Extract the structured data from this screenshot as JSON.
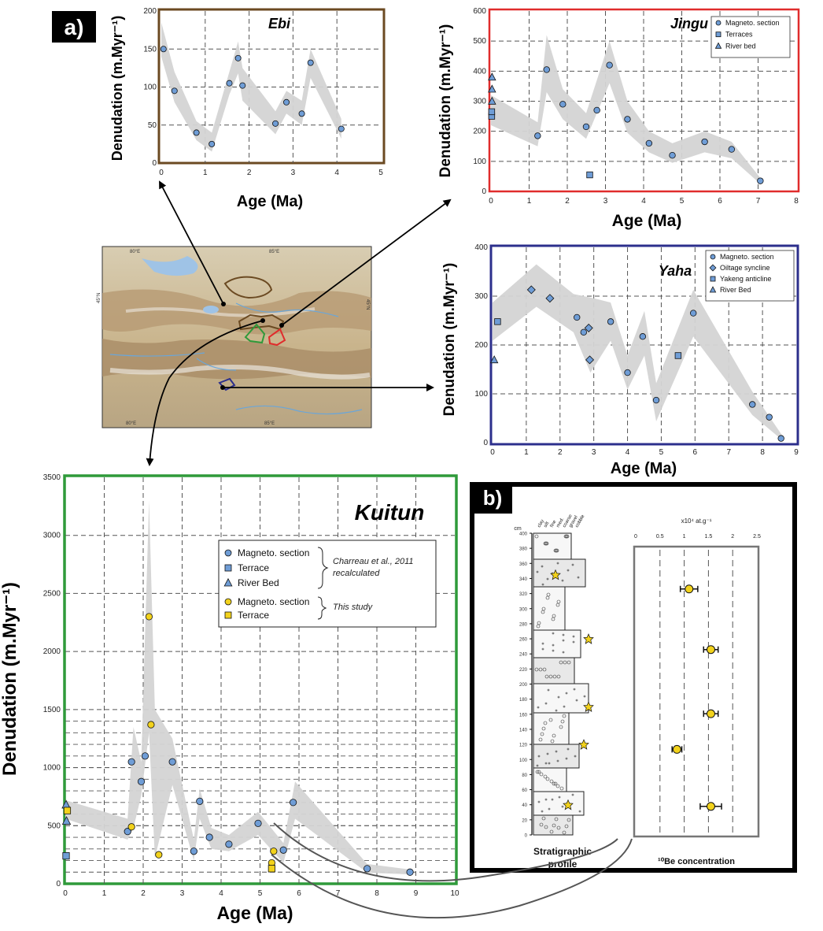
{
  "panel_labels": {
    "a": "a)",
    "b": "b)"
  },
  "colors": {
    "ebi": "#6b4a22",
    "jingu": "#e02c2c",
    "yaha": "#2c2f8c",
    "kuitun": "#2f9a3a",
    "band": "#d4d4d4",
    "blue_point": "#6f9dd6",
    "yellow_point": "#f2d21c"
  },
  "chart_data": [
    {
      "id": "ebi",
      "type": "scatter",
      "title": "Ebi",
      "xlabel": "Age (Ma)",
      "ylabel": "Denudation (m.Myr⁻¹)",
      "xlim": [
        0,
        5
      ],
      "ylim": [
        0,
        200
      ],
      "xticks": [
        "0",
        "1",
        "2",
        "3",
        "4",
        "5"
      ],
      "yticks": [
        "0",
        "50",
        "100",
        "150",
        "200"
      ],
      "grid": true,
      "series": [
        {
          "marker": "circle",
          "color": "#6f9dd6",
          "x": [
            0.05,
            0.3,
            0.8,
            1.15,
            1.55,
            1.75,
            1.85,
            2.6,
            2.85,
            3.2,
            3.4,
            4.1
          ],
          "y": [
            150,
            95,
            40,
            25,
            105,
            138,
            102,
            52,
            80,
            65,
            132,
            45
          ]
        }
      ],
      "band_upper": [
        [
          0,
          185
        ],
        [
          0.3,
          120
        ],
        [
          0.8,
          55
        ],
        [
          1.15,
          40
        ],
        [
          1.55,
          120
        ],
        [
          1.75,
          160
        ],
        [
          1.85,
          125
        ],
        [
          2.6,
          68
        ],
        [
          2.85,
          95
        ],
        [
          3.2,
          82
        ],
        [
          3.4,
          150
        ],
        [
          4.1,
          58
        ]
      ],
      "band_lower": [
        [
          0,
          140
        ],
        [
          0.3,
          80
        ],
        [
          0.8,
          30
        ],
        [
          1.15,
          15
        ],
        [
          1.55,
          90
        ],
        [
          1.75,
          118
        ],
        [
          1.85,
          82
        ],
        [
          2.6,
          38
        ],
        [
          2.85,
          65
        ],
        [
          3.2,
          50
        ],
        [
          3.4,
          112
        ],
        [
          4.1,
          32
        ]
      ]
    },
    {
      "id": "jingu",
      "type": "scatter",
      "title": "Jingu",
      "xlabel": "Age (Ma)",
      "ylabel": "Denudation (m.Myr⁻¹)",
      "xlim": [
        0,
        8.5
      ],
      "ylim": [
        0,
        600
      ],
      "xticks": [
        "0",
        "1",
        "2",
        "3",
        "4",
        "5",
        "6",
        "7",
        "8"
      ],
      "yticks": [
        "0",
        "100",
        "200",
        "300",
        "400",
        "500",
        "600"
      ],
      "grid": true,
      "legend": {
        "position": "top-right",
        "entries": [
          {
            "label": "Magneto. section",
            "marker": "circle"
          },
          {
            "label": "Terraces",
            "marker": "square"
          },
          {
            "label": "River bed",
            "marker": "triangle"
          }
        ]
      },
      "series": [
        {
          "name": "Magneto. section",
          "marker": "circle",
          "color": "#6f9dd6",
          "x": [
            1.3,
            1.55,
            2.0,
            2.65,
            2.95,
            3.3,
            3.8,
            4.4,
            5.05,
            5.95,
            6.7,
            7.5
          ],
          "y": [
            185,
            405,
            290,
            215,
            270,
            420,
            240,
            160,
            120,
            165,
            140,
            35
          ]
        },
        {
          "name": "Terraces",
          "marker": "square",
          "color": "#6f9dd6",
          "x": [
            0.02,
            0.02,
            2.75
          ],
          "y": [
            250,
            265,
            55
          ]
        },
        {
          "name": "River bed",
          "marker": "triangle",
          "color": "#6f9dd6",
          "x": [
            0.03,
            0.03,
            0.03
          ],
          "y": [
            380,
            340,
            300
          ]
        }
      ],
      "band_upper": [
        [
          0,
          320
        ],
        [
          1.3,
          230
        ],
        [
          1.55,
          520
        ],
        [
          2.0,
          340
        ],
        [
          2.65,
          260
        ],
        [
          3.3,
          500
        ],
        [
          3.8,
          300
        ],
        [
          4.4,
          200
        ],
        [
          5.05,
          160
        ],
        [
          5.95,
          200
        ],
        [
          6.7,
          165
        ],
        [
          7.5,
          45
        ]
      ],
      "band_lower": [
        [
          0,
          220
        ],
        [
          1.3,
          150
        ],
        [
          1.55,
          330
        ],
        [
          2.0,
          240
        ],
        [
          2.65,
          175
        ],
        [
          3.3,
          360
        ],
        [
          3.8,
          195
        ],
        [
          4.4,
          130
        ],
        [
          5.05,
          95
        ],
        [
          5.95,
          130
        ],
        [
          6.7,
          110
        ],
        [
          7.5,
          25
        ]
      ]
    },
    {
      "id": "yaha",
      "type": "scatter",
      "title": "Yaha",
      "xlabel": "Age (Ma)",
      "ylabel": "Denudation (m.Myr⁻¹)",
      "xlim": [
        0,
        9
      ],
      "ylim": [
        0,
        460
      ],
      "xticks": [
        "0",
        "1",
        "2",
        "3",
        "4",
        "5",
        "6",
        "7",
        "8",
        "9"
      ],
      "yticks": [
        "0",
        "100",
        "200",
        "300",
        "400"
      ],
      "grid": true,
      "legend": {
        "position": "top-right",
        "entries": [
          {
            "label": "Magneto. section",
            "marker": "circle"
          },
          {
            "label": "Oiltage syncline",
            "marker": "diamond"
          },
          {
            "label": "Yakeng anticline",
            "marker": "square"
          },
          {
            "label": "River Bed",
            "marker": "triangle"
          }
        ]
      },
      "series": [
        {
          "name": "Magneto. section",
          "marker": "circle",
          "color": "#6f9dd6",
          "x": [
            2.5,
            2.7,
            3.5,
            4.0,
            4.45,
            4.85,
            5.95,
            7.7,
            8.2,
            8.55
          ],
          "y": [
            295,
            260,
            285,
            165,
            250,
            100,
            305,
            90,
            60,
            10
          ]
        },
        {
          "name": "Oiltage syncline",
          "marker": "diamond",
          "color": "#6f9dd6",
          "x": [
            1.15,
            1.7,
            2.85,
            2.88
          ],
          "y": [
            360,
            340,
            270,
            195
          ]
        },
        {
          "name": "Yakeng anticline",
          "marker": "square",
          "color": "#6f9dd6",
          "x": [
            0.15,
            5.5
          ],
          "y": [
            285,
            205
          ]
        },
        {
          "name": "River Bed",
          "marker": "triangle",
          "color": "#6f9dd6",
          "x": [
            0.05
          ],
          "y": [
            195
          ]
        }
      ],
      "band_upper": [
        [
          0,
          330
        ],
        [
          1.3,
          420
        ],
        [
          2.4,
          350
        ],
        [
          3.0,
          340
        ],
        [
          3.5,
          330
        ],
        [
          4.0,
          205
        ],
        [
          4.5,
          310
        ],
        [
          4.85,
          140
        ],
        [
          5.95,
          360
        ],
        [
          7.7,
          120
        ],
        [
          8.6,
          15
        ]
      ],
      "band_lower": [
        [
          0,
          240
        ],
        [
          1.3,
          320
        ],
        [
          2.4,
          260
        ],
        [
          2.9,
          165
        ],
        [
          3.5,
          240
        ],
        [
          4.0,
          125
        ],
        [
          4.5,
          205
        ],
        [
          4.85,
          50
        ],
        [
          5.95,
          250
        ],
        [
          7.7,
          65
        ],
        [
          8.6,
          5
        ]
      ]
    },
    {
      "id": "kuitun",
      "type": "scatter",
      "title": "Kuitun",
      "xlabel": "Age (Ma)",
      "ylabel": "Denudation (m.Myr⁻¹)",
      "xlim": [
        0,
        10
      ],
      "ylim": [
        0,
        3500
      ],
      "xticks": [
        "0",
        "1",
        "2",
        "3",
        "4",
        "5",
        "6",
        "7",
        "8",
        "9",
        "10"
      ],
      "yticks": [
        "0",
        "500",
        "1000",
        "1500",
        "2000",
        "2500",
        "3000",
        "3500"
      ],
      "grid": true,
      "legend": {
        "position": "top-right",
        "entries": [
          {
            "label": "Magneto. section",
            "marker": "circle",
            "color": "#6f9dd6"
          },
          {
            "label": "Terrace",
            "marker": "square",
            "color": "#6f9dd6"
          },
          {
            "label": "River Bed",
            "marker": "triangle",
            "color": "#6f9dd6"
          },
          {
            "label": "Magneto. section",
            "marker": "circle",
            "color": "#f2d21c"
          },
          {
            "label": "Terrace",
            "marker": "square",
            "color": "#f2d21c"
          }
        ],
        "notes": [
          "Charreau et al., 2011 recalculated",
          "This study"
        ]
      },
      "series": [
        {
          "name": "Magneto. section",
          "marker": "circle",
          "color": "#6f9dd6",
          "x": [
            1.6,
            1.7,
            1.95,
            2.05,
            2.75,
            3.3,
            3.45,
            3.7,
            4.2,
            4.95,
            5.6,
            5.85,
            7.75,
            8.85
          ],
          "y": [
            450,
            1050,
            880,
            1100,
            1050,
            280,
            710,
            400,
            340,
            520,
            290,
            700,
            130,
            100
          ]
        },
        {
          "name": "Terrace",
          "marker": "square",
          "color": "#6f9dd6",
          "x": [
            0.02
          ],
          "y": [
            240
          ]
        },
        {
          "name": "River Bed",
          "marker": "triangle",
          "color": "#6f9dd6",
          "x": [
            0.02,
            0.03
          ],
          "y": [
            680,
            540
          ]
        },
        {
          "name": "Magneto. section",
          "marker": "circle",
          "color": "#f2d21c",
          "x": [
            1.7,
            2.15,
            2.2,
            2.4,
            5.35,
            5.3
          ],
          "y": [
            490,
            2300,
            1370,
            250,
            280,
            180
          ]
        },
        {
          "name": "Terrace",
          "marker": "square",
          "color": "#f2d21c",
          "x": [
            0.05,
            5.3
          ],
          "y": [
            630,
            130
          ]
        }
      ],
      "band_upper": [
        [
          0,
          720
        ],
        [
          1.6,
          560
        ],
        [
          1.75,
          1350
        ],
        [
          1.95,
          1050
        ],
        [
          2.15,
          3300
        ],
        [
          2.3,
          1500
        ],
        [
          2.75,
          1250
        ],
        [
          3.3,
          380
        ],
        [
          3.45,
          820
        ],
        [
          3.75,
          480
        ],
        [
          4.2,
          420
        ],
        [
          4.95,
          620
        ],
        [
          5.6,
          350
        ],
        [
          5.9,
          880
        ],
        [
          7.75,
          170
        ],
        [
          8.9,
          120
        ]
      ],
      "band_lower": [
        [
          0,
          560
        ],
        [
          1.6,
          380
        ],
        [
          1.75,
          480
        ],
        [
          1.95,
          760
        ],
        [
          2.15,
          1300
        ],
        [
          2.3,
          220
        ],
        [
          2.75,
          850
        ],
        [
          3.3,
          200
        ],
        [
          3.45,
          560
        ],
        [
          3.75,
          300
        ],
        [
          4.2,
          280
        ],
        [
          4.95,
          420
        ],
        [
          5.6,
          180
        ],
        [
          5.9,
          560
        ],
        [
          7.75,
          95
        ],
        [
          8.9,
          80
        ]
      ]
    },
    {
      "id": "be10",
      "type": "scatter",
      "title": "",
      "xlabel": "¹⁰Be concentration",
      "ylabel": "",
      "unit_label": "x10⁴ at.g⁻¹",
      "xlim": [
        0,
        2.5
      ],
      "ylim": [
        0,
        400
      ],
      "xticks": [
        "0",
        "0.5",
        "1",
        "1.5",
        "2",
        "2.5"
      ],
      "yticks": [
        "0",
        "20",
        "40",
        "60",
        "80",
        "100",
        "120",
        "140",
        "160",
        "180",
        "200",
        "220",
        "240",
        "260",
        "280",
        "300",
        "320",
        "340",
        "360",
        "380",
        "400"
      ],
      "y_unit": "cm",
      "grid": true,
      "series": [
        {
          "marker": "circle",
          "color": "#f2d21c",
          "x": [
            1.1,
            1.55,
            1.55,
            0.85,
            1.55
          ],
          "y": [
            345,
            260,
            170,
            120,
            40
          ],
          "xerr": [
            0.18,
            0.15,
            0.15,
            0.1,
            0.22
          ]
        }
      ]
    }
  ],
  "strat": {
    "label_line1": "Stratigraphic",
    "label_line2": "profile",
    "grain_labels": [
      "clay",
      "silt",
      "fine",
      "med.",
      "coarse",
      "gravel",
      "cobble"
    ]
  },
  "map": {
    "lat_labels": [
      "45°N",
      "45°N"
    ],
    "lon_labels_top": [
      "80°E",
      "85°E"
    ],
    "lon_labels_bottom": [
      "80°E",
      "85°E"
    ]
  }
}
